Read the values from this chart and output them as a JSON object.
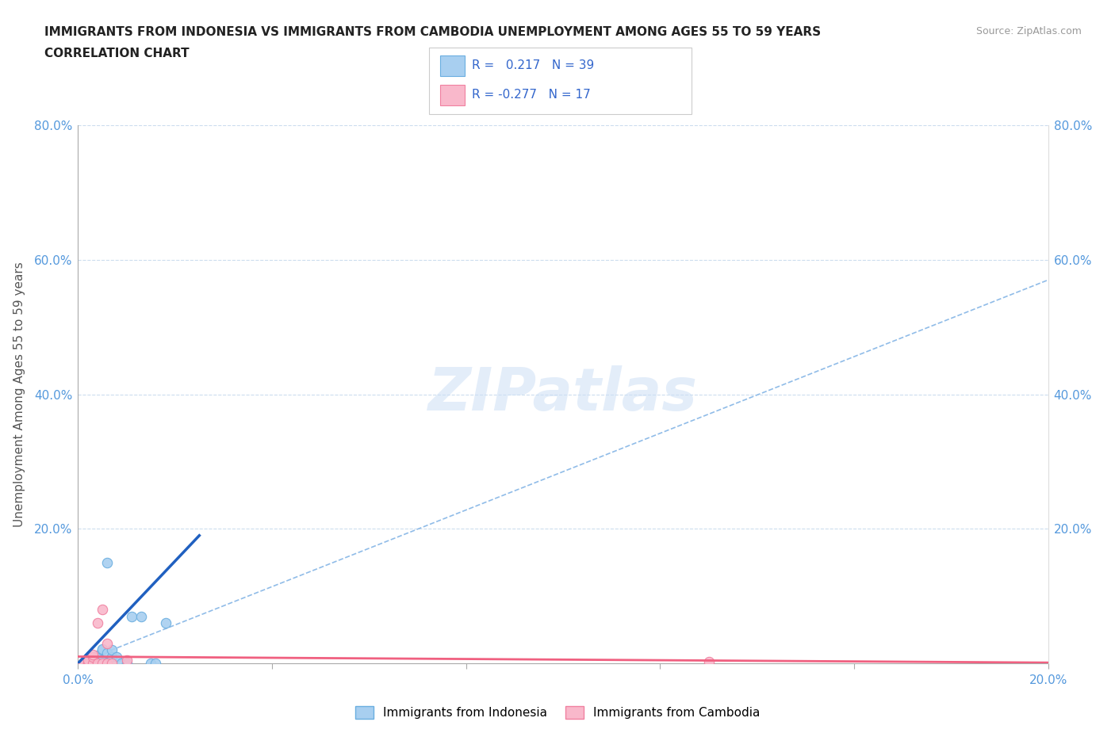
{
  "title_line1": "IMMIGRANTS FROM INDONESIA VS IMMIGRANTS FROM CAMBODIA UNEMPLOYMENT AMONG AGES 55 TO 59 YEARS",
  "title_line2": "CORRELATION CHART",
  "source": "Source: ZipAtlas.com",
  "ylabel": "Unemployment Among Ages 55 to 59 years",
  "xlim": [
    0.0,
    0.2
  ],
  "ylim": [
    0.0,
    0.8
  ],
  "xticks": [
    0.0,
    0.04,
    0.08,
    0.12,
    0.16,
    0.2
  ],
  "xtick_labels": [
    "0.0%",
    "",
    "",
    "",
    "",
    "20.0%"
  ],
  "yticks": [
    0.0,
    0.2,
    0.4,
    0.6,
    0.8
  ],
  "ytick_labels": [
    "",
    "20.0%",
    "40.0%",
    "60.0%",
    "80.0%"
  ],
  "indonesia_color": "#a8cff0",
  "cambodia_color": "#f9b8cb",
  "indonesia_edge": "#6aaee0",
  "cambodia_edge": "#f080a0",
  "trend_indonesia_color": "#2060c0",
  "trend_cambodia_color": "#f06080",
  "trend_dashed_color": "#90bce8",
  "R_indonesia": 0.217,
  "N_indonesia": 39,
  "R_cambodia": -0.277,
  "N_cambodia": 17,
  "watermark": "ZIPatlas",
  "indonesia_x": [
    0.001,
    0.001,
    0.001,
    0.001,
    0.002,
    0.002,
    0.002,
    0.002,
    0.002,
    0.002,
    0.002,
    0.002,
    0.003,
    0.003,
    0.003,
    0.003,
    0.003,
    0.003,
    0.003,
    0.003,
    0.004,
    0.004,
    0.004,
    0.005,
    0.005,
    0.005,
    0.005,
    0.006,
    0.006,
    0.007,
    0.007,
    0.008,
    0.009,
    0.01,
    0.011,
    0.013,
    0.015,
    0.016,
    0.018
  ],
  "indonesia_y": [
    0.0,
    0.0,
    0.0,
    0.0,
    0.0,
    0.0,
    0.0,
    0.0,
    0.0,
    0.001,
    0.001,
    0.002,
    0.0,
    0.0,
    0.0,
    0.001,
    0.001,
    0.002,
    0.003,
    0.01,
    0.002,
    0.004,
    0.012,
    0.003,
    0.005,
    0.02,
    0.021,
    0.015,
    0.15,
    0.01,
    0.02,
    0.01,
    0.0,
    0.0,
    0.07,
    0.07,
    0.0,
    0.0,
    0.06
  ],
  "cambodia_x": [
    0.001,
    0.001,
    0.002,
    0.002,
    0.002,
    0.003,
    0.003,
    0.003,
    0.004,
    0.004,
    0.005,
    0.005,
    0.006,
    0.006,
    0.007,
    0.01,
    0.13
  ],
  "cambodia_y": [
    0.0,
    0.0,
    0.0,
    0.0,
    0.005,
    0.0,
    0.01,
    0.013,
    0.0,
    0.06,
    0.0,
    0.08,
    0.0,
    0.03,
    0.0,
    0.005,
    0.002
  ],
  "trend_indo_x0": 0.0,
  "trend_indo_x1": 0.025,
  "trend_indo_y0": 0.0,
  "trend_indo_y1": 0.19,
  "trend_dashed_x0": 0.0,
  "trend_dashed_x1": 0.2,
  "trend_dashed_y0": 0.0,
  "trend_dashed_y1": 0.57,
  "trend_camb_x0": 0.0,
  "trend_camb_x1": 0.2,
  "trend_camb_y0": 0.01,
  "trend_camb_y1": 0.001
}
